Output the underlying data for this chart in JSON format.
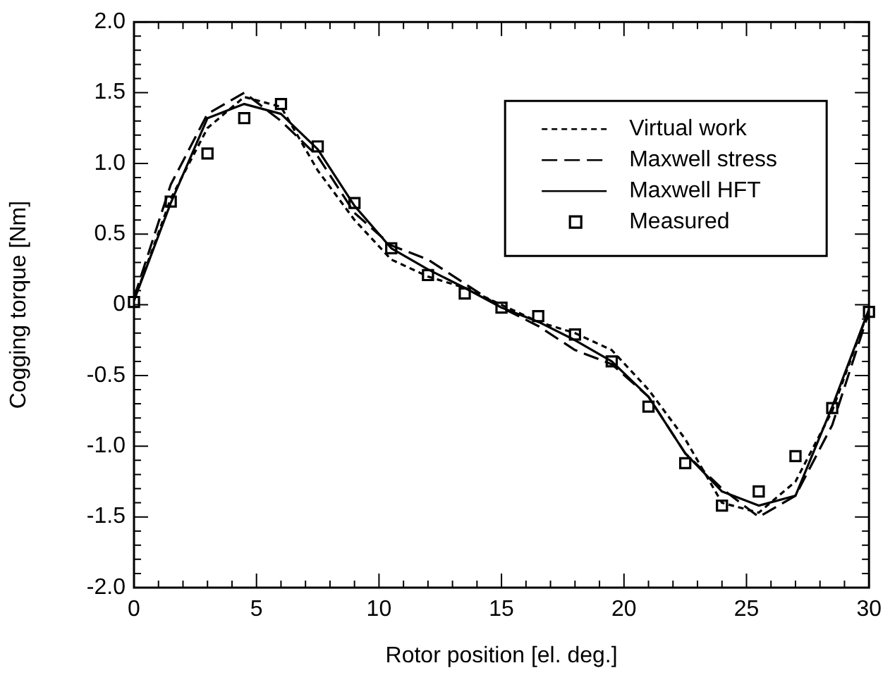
{
  "chart_data": {
    "type": "line",
    "xlabel": "Rotor position [el. deg.]",
    "ylabel": "Cogging torque [Nm]",
    "x": [
      0,
      1.5,
      3,
      4.5,
      6,
      7.5,
      9,
      10.5,
      12,
      13.5,
      15,
      16.5,
      18,
      19.5,
      21,
      22.5,
      24,
      25.5,
      27,
      28.5,
      30
    ],
    "xlim": [
      0,
      30
    ],
    "xticks": [
      0,
      5,
      10,
      15,
      20,
      25,
      30
    ],
    "ylim": [
      -2,
      2
    ],
    "yticks": [
      {
        "value": -2,
        "label": "-2.0"
      },
      {
        "value": -1.5,
        "label": "-1.5"
      },
      {
        "value": -1,
        "label": "-1.0"
      },
      {
        "value": -0.5,
        "label": "-0.5"
      },
      0,
      {
        "value": 0.5,
        "label": "0.5"
      },
      {
        "value": 1,
        "label": "1.0"
      },
      {
        "value": 1.5,
        "label": "1.5"
      },
      {
        "value": 2,
        "label": "2.0"
      }
    ],
    "grid": false,
    "legend": "top right",
    "series": [
      {
        "name": "Virtual work",
        "color": "#000000",
        "line_style": "dotted",
        "marker": "none",
        "values": [
          0.03,
          0.75,
          1.25,
          1.47,
          1.4,
          0.95,
          0.6,
          0.32,
          0.2,
          0.12,
          0.0,
          -0.12,
          -0.2,
          -0.32,
          -0.6,
          -0.95,
          -1.4,
          -1.47,
          -1.25,
          -0.75,
          -0.03
        ]
      },
      {
        "name": "Maxwell stress",
        "color": "#000000",
        "line_style": "dashed",
        "marker": "none",
        "values": [
          0.05,
          0.85,
          1.35,
          1.5,
          1.3,
          1.05,
          0.65,
          0.42,
          0.32,
          0.15,
          -0.02,
          -0.15,
          -0.32,
          -0.42,
          -0.65,
          -1.05,
          -1.3,
          -1.5,
          -1.35,
          -0.85,
          -0.05
        ]
      },
      {
        "name": "Maxwell HFT",
        "color": "#000000",
        "line_style": "solid",
        "marker": "none",
        "values": [
          0.03,
          0.72,
          1.32,
          1.42,
          1.35,
          1.1,
          0.7,
          0.4,
          0.25,
          0.12,
          -0.02,
          -0.12,
          -0.25,
          -0.4,
          -0.65,
          -1.05,
          -1.32,
          -1.42,
          -1.35,
          -0.72,
          -0.03
        ]
      },
      {
        "name": "Measured",
        "type": "scatter",
        "color": "#000000",
        "marker": "square",
        "values": [
          0.02,
          0.73,
          1.07,
          1.32,
          1.42,
          1.12,
          0.72,
          0.4,
          0.21,
          0.08,
          -0.02,
          -0.08,
          -0.21,
          -0.4,
          -0.72,
          -1.12,
          -1.42,
          -1.32,
          -1.07,
          -0.73,
          -0.05
        ]
      }
    ]
  }
}
